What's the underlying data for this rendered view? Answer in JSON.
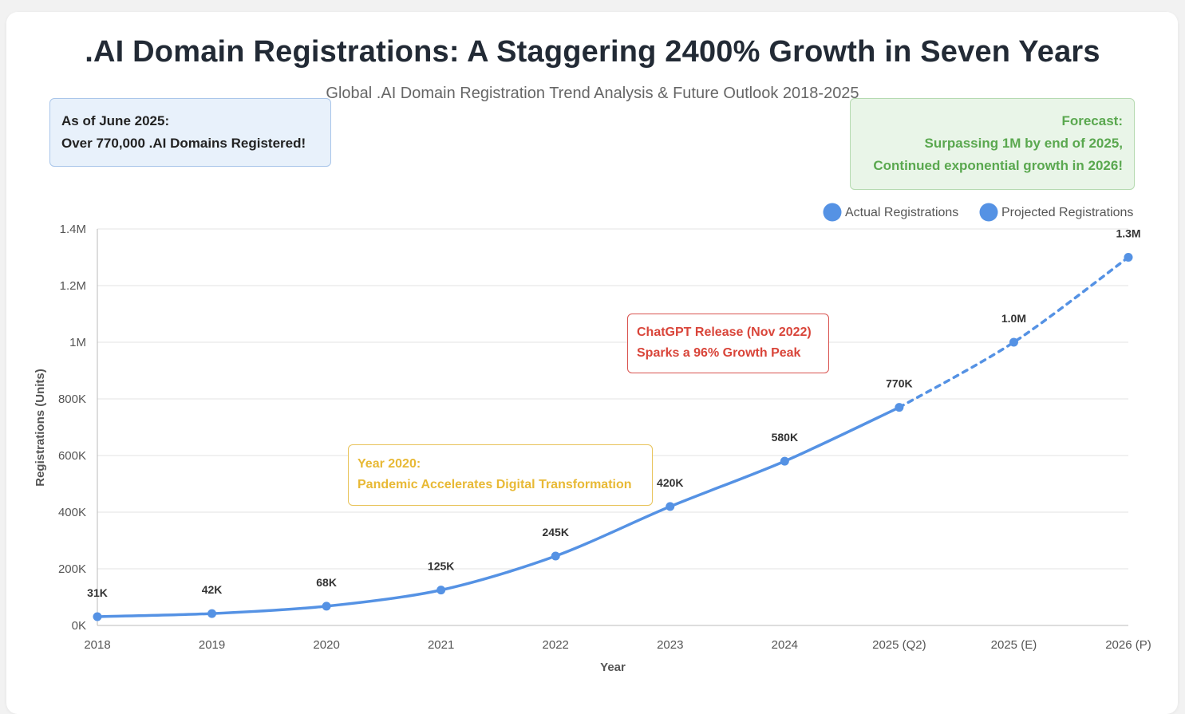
{
  "header": {
    "title": ".AI Domain Registrations: A Staggering 2400% Growth in Seven Years",
    "subtitle": "Global .AI Domain Registration Trend Analysis & Future Outlook 2018-2025"
  },
  "notes": {
    "current": {
      "line1": "As of June 2025:",
      "line2": "Over 770,000 .AI Domains Registered!"
    },
    "forecast": {
      "line1": "Forecast:",
      "line2": "Surpassing 1M by end of 2025,",
      "line3": "Continued exponential growth in 2026!"
    },
    "chatgpt": {
      "line1": "ChatGPT Release (Nov 2022)",
      "line2": "Sparks a 96% Growth Peak"
    },
    "year2020": {
      "line1": "Year 2020:",
      "line2": "Pandemic Accelerates Digital Transformation"
    }
  },
  "colors": {
    "line": "#5592e4",
    "grid": "#e3e3e3",
    "axis": "#bbbbbb"
  },
  "chart_data": {
    "type": "line",
    "xlabel": "Year",
    "ylabel": "Registrations (Units)",
    "ylim": [
      0,
      1400000
    ],
    "yticks": [
      0,
      200000,
      400000,
      600000,
      800000,
      1000000,
      1200000,
      1400000
    ],
    "ytick_labels": [
      "0K",
      "200K",
      "400K",
      "600K",
      "800K",
      "1M",
      "1.2M",
      "1.4M"
    ],
    "categories": [
      "2018",
      "2019",
      "2020",
      "2021",
      "2022",
      "2023",
      "2024",
      "2025 (Q2)",
      "2025 (E)",
      "2026 (P)"
    ],
    "series": [
      {
        "name": "Actual Registrations",
        "style": "solid",
        "points": [
          {
            "x": "2018",
            "y": 31000,
            "label": "31K"
          },
          {
            "x": "2019",
            "y": 42000,
            "label": "42K"
          },
          {
            "x": "2020",
            "y": 68000,
            "label": "68K"
          },
          {
            "x": "2021",
            "y": 125000,
            "label": "125K"
          },
          {
            "x": "2022",
            "y": 245000,
            "label": "245K"
          },
          {
            "x": "2023",
            "y": 420000,
            "label": "420K"
          },
          {
            "x": "2024",
            "y": 580000,
            "label": "580K"
          },
          {
            "x": "2025 (Q2)",
            "y": 770000,
            "label": "770K"
          }
        ]
      },
      {
        "name": "Projected Registrations",
        "style": "dashed",
        "points": [
          {
            "x": "2025 (Q2)",
            "y": 770000,
            "label": ""
          },
          {
            "x": "2025 (E)",
            "y": 1000000,
            "label": "1.0M"
          },
          {
            "x": "2026 (P)",
            "y": 1300000,
            "label": "1.3M"
          }
        ]
      }
    ],
    "legend": {
      "placement": "top-right"
    }
  }
}
